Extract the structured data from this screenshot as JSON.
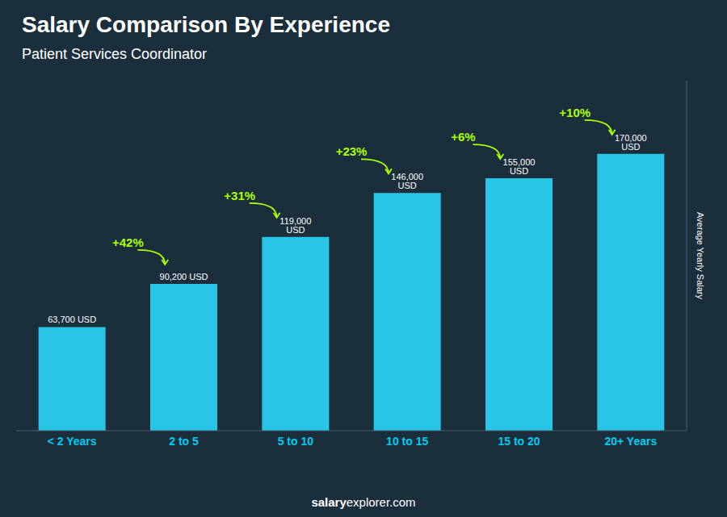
{
  "chart_data": {
    "type": "bar",
    "title": "Salary Comparison By Experience",
    "subtitle": "Patient Services Coordinator",
    "categories": [
      "< 2 Years",
      "2 to 5",
      "5 to 10",
      "10 to 15",
      "15 to 20",
      "20+ Years"
    ],
    "values": [
      63700,
      90200,
      119000,
      146000,
      155000,
      170000
    ],
    "value_labels": [
      "63,700 USD",
      "90,200 USD",
      "119,000 USD",
      "146,000 USD",
      "155,000 USD",
      "170,000 USD"
    ],
    "data_labels": true,
    "color": "#29c5e6",
    "ylabel": "Average Yearly Salary",
    "ylim": [
      0,
      215000
    ],
    "tick_labels": "x",
    "grid": false,
    "annotations": [
      "+42%",
      "+31%",
      "+23%",
      "+6%",
      "+10%"
    ],
    "footer": [
      "salary",
      "explorer.com"
    ]
  }
}
